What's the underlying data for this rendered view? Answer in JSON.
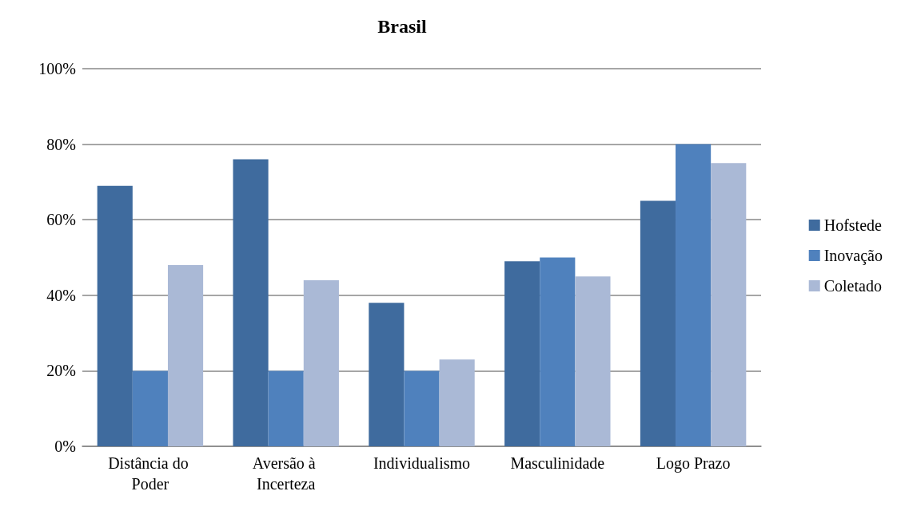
{
  "chart_data": {
    "type": "bar",
    "title": "Brasil",
    "categories": [
      "Distância do Poder",
      "Aversão à Incerteza",
      "Individualismo",
      "Masculinidade",
      "Logo Prazo"
    ],
    "series": [
      {
        "name": "Hofstede",
        "color": "#3f6b9e",
        "values": [
          69,
          76,
          38,
          49,
          65
        ]
      },
      {
        "name": "Inovação",
        "color": "#4f81bd",
        "values": [
          20,
          20,
          20,
          50,
          80
        ]
      },
      {
        "name": "Coletado",
        "color": "#aab9d6",
        "values": [
          48,
          44,
          23,
          45,
          75
        ]
      }
    ],
    "ylim": [
      0,
      100
    ],
    "yticks": [
      {
        "value": 0,
        "label": "0%"
      },
      {
        "value": 20,
        "label": "20%"
      },
      {
        "value": 40,
        "label": "40%"
      },
      {
        "value": 60,
        "label": "60%"
      },
      {
        "value": 80,
        "label": "80%"
      },
      {
        "value": 100,
        "label": "100%"
      }
    ],
    "grid": "y",
    "legend": "right"
  }
}
